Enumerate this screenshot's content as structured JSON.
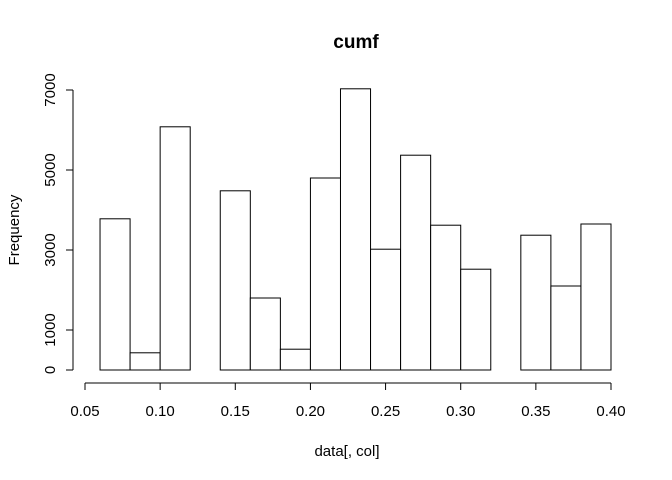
{
  "chart_data": {
    "type": "bar",
    "title": "cumf",
    "xlabel": "data[, col]",
    "ylabel": "Frequency",
    "xlim": [
      0.05,
      0.4
    ],
    "ylim": [
      0,
      7000
    ],
    "x_ticks": [
      "0.05",
      "0.10",
      "0.15",
      "0.20",
      "0.25",
      "0.30",
      "0.35",
      "0.40"
    ],
    "y_ticks": [
      "0",
      "1000",
      "3000",
      "5000",
      "7000"
    ],
    "bins": [
      {
        "start": 0.06,
        "end": 0.08,
        "count": 3780
      },
      {
        "start": 0.08,
        "end": 0.1,
        "count": 430
      },
      {
        "start": 0.1,
        "end": 0.12,
        "count": 6080
      },
      {
        "start": 0.12,
        "end": 0.14,
        "count": 0
      },
      {
        "start": 0.14,
        "end": 0.16,
        "count": 4480
      },
      {
        "start": 0.16,
        "end": 0.18,
        "count": 1800
      },
      {
        "start": 0.18,
        "end": 0.2,
        "count": 520
      },
      {
        "start": 0.2,
        "end": 0.22,
        "count": 4800
      },
      {
        "start": 0.22,
        "end": 0.24,
        "count": 7030
      },
      {
        "start": 0.24,
        "end": 0.26,
        "count": 3020
      },
      {
        "start": 0.26,
        "end": 0.28,
        "count": 5370
      },
      {
        "start": 0.28,
        "end": 0.3,
        "count": 3620
      },
      {
        "start": 0.3,
        "end": 0.32,
        "count": 2520
      },
      {
        "start": 0.32,
        "end": 0.34,
        "count": 0
      },
      {
        "start": 0.34,
        "end": 0.36,
        "count": 3370
      },
      {
        "start": 0.36,
        "end": 0.38,
        "count": 2100
      },
      {
        "start": 0.38,
        "end": 0.4,
        "count": 3650
      }
    ],
    "grid": false,
    "legend": "none"
  }
}
